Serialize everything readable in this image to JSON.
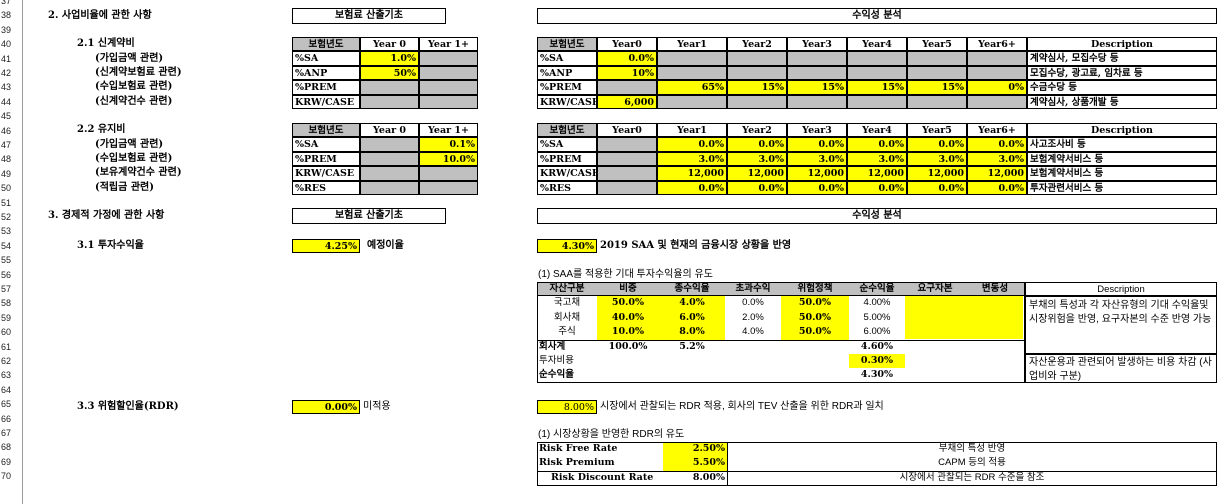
{
  "rows": [
    "37",
    "38",
    "39",
    "40",
    "41",
    "42",
    "43",
    "44",
    "45",
    "46",
    "47",
    "48",
    "49",
    "50",
    "51",
    "52",
    "53",
    "54",
    "55",
    "56",
    "57",
    "58",
    "59",
    "60",
    "61",
    "62",
    "63",
    "64",
    "65",
    "66",
    "67",
    "68",
    "69",
    "70"
  ],
  "sec2": {
    "title": "2. 사업비율에 관한 사항",
    "head_left": "보험료 산출기초",
    "head_right": "수익성 분석"
  },
  "s21": {
    "title": "2.1 신계약비",
    "items": [
      "(가입금액 관련)",
      "(신계약보험료 관련)",
      "(수입보험료 관련)",
      "(신계약건수 관련)"
    ],
    "lh": [
      "보험년도",
      "Year 0",
      "Year 1+"
    ],
    "lrows": [
      [
        "%SA",
        "1.0%",
        ""
      ],
      [
        "%ANP",
        "50%",
        ""
      ],
      [
        "%PREM",
        "",
        ""
      ],
      [
        "KRW/CASE",
        "",
        ""
      ]
    ],
    "rh": [
      "보험년도",
      "Year0",
      "Year1",
      "Year2",
      "Year3",
      "Year4",
      "Year5",
      "Year6+",
      "Description"
    ],
    "rrows": [
      [
        "%SA",
        "0.0%",
        "",
        "",
        "",
        "",
        "",
        "",
        ""
      ],
      [
        "%ANP",
        "10%",
        "",
        "",
        "",
        "",
        "",
        "",
        ""
      ],
      [
        "%PREM",
        "",
        "65%",
        "15%",
        "15%",
        "15%",
        "15%",
        "0%",
        ""
      ],
      [
        "KRW/CASE",
        "6,000",
        "",
        "",
        "",
        "",
        "",
        "",
        ""
      ]
    ],
    "desc": [
      "계약심사, 모집수당 등",
      "모집수당, 광고료, 임차료 등",
      "수금수당 등",
      "계약심사, 상품개발 등"
    ]
  },
  "s22": {
    "title": "2.2 유지비",
    "items": [
      "(가입금액 관련)",
      "(수입보험료 관련)",
      "(보유계약건수 관련)",
      "(적립금 관련)"
    ],
    "lh": [
      "보험년도",
      "Year 0",
      "Year 1+"
    ],
    "lrows": [
      [
        "%SA",
        "",
        "0.1%"
      ],
      [
        "%PREM",
        "",
        "10.0%"
      ],
      [
        "KRW/CASE",
        "",
        ""
      ],
      [
        "%RES",
        "",
        ""
      ]
    ],
    "rh": [
      "보험년도",
      "Year0",
      "Year1",
      "Year2",
      "Year3",
      "Year4",
      "Year5",
      "Year6+",
      "Description"
    ],
    "rrows": [
      [
        "%SA",
        "",
        "0.0%",
        "0.0%",
        "0.0%",
        "0.0%",
        "0.0%",
        "0.0%",
        ""
      ],
      [
        "%PREM",
        "",
        "3.0%",
        "3.0%",
        "3.0%",
        "3.0%",
        "3.0%",
        "3.0%",
        ""
      ],
      [
        "KRW/CASE",
        "",
        "12,000",
        "12,000",
        "12,000",
        "12,000",
        "12,000",
        "12,000",
        ""
      ],
      [
        "%RES",
        "",
        "0.0%",
        "0.0%",
        "0.0%",
        "0.0%",
        "0.0%",
        "0.0%",
        ""
      ]
    ],
    "desc": [
      "사고조사비 등",
      "보험계약서비스 등",
      "보험계약서비스 등",
      "투자관련서비스 등"
    ]
  },
  "sec3": {
    "title": "3. 경제적 가정에 관한 사항",
    "head_left": "보험료 산출기초",
    "head_right": "수익성 분석"
  },
  "s31": {
    "title": "3.1 투자수익율",
    "left_val": "4.25%",
    "left_label": "예정이율",
    "right_val": "4.30%",
    "right_label": "2019 SAA 및 현재의 금융시장 상황을 반영",
    "sub": "(1) SAA를 적용한 기대 투자수익율의 유도",
    "headers": [
      "자산구분",
      "비중",
      "총수익율",
      "초과수익",
      "위험정책",
      "순수익율",
      "요구자본",
      "변동성"
    ],
    "rows": [
      [
        "국고채",
        "50.0%",
        "4.0%",
        "0.0%",
        "50.0%",
        "4.00%"
      ],
      [
        "회사채",
        "40.0%",
        "6.0%",
        "2.0%",
        "50.0%",
        "5.00%"
      ],
      [
        "주식",
        "10.0%",
        "8.0%",
        "4.0%",
        "50.0%",
        "6.00%"
      ]
    ],
    "total": [
      "회사계",
      "100.0%",
      "5.2%",
      "",
      "",
      "4.60%"
    ],
    "cost": [
      "투자비용",
      "0.30%"
    ],
    "net": [
      "순수익율",
      "4.30%"
    ],
    "desc_h": "Description",
    "desc1": "부채의 특성과 각 자산유형의 기대 수익율및 시장위험을 반영, 요구자본의 수준 반영 가능",
    "desc2": "자산운용과 관련되어 발생하는 비용 차감 (사업비와 구분)"
  },
  "s33": {
    "title": "3.3 위험할인율(RDR)",
    "left_val": "0.00%",
    "left_label": "미적용",
    "right_val": "8.00%",
    "right_label": "시장에서 관찰되는 RDR 적용, 회사의 TEV 산출을 위한 RDR과 일치",
    "sub": "(1) 시장상황을 반영한 RDR의 유도",
    "rows": [
      [
        "Risk Free Rate",
        "2.50%",
        "부채의 특성 반영"
      ],
      [
        "Risk Premium",
        "5.50%",
        "CAPM 등의 적용"
      ],
      [
        "Risk Discount Rate",
        "8.00%",
        "시장에서 관찰되는 RDR 수준을 참조"
      ]
    ]
  }
}
